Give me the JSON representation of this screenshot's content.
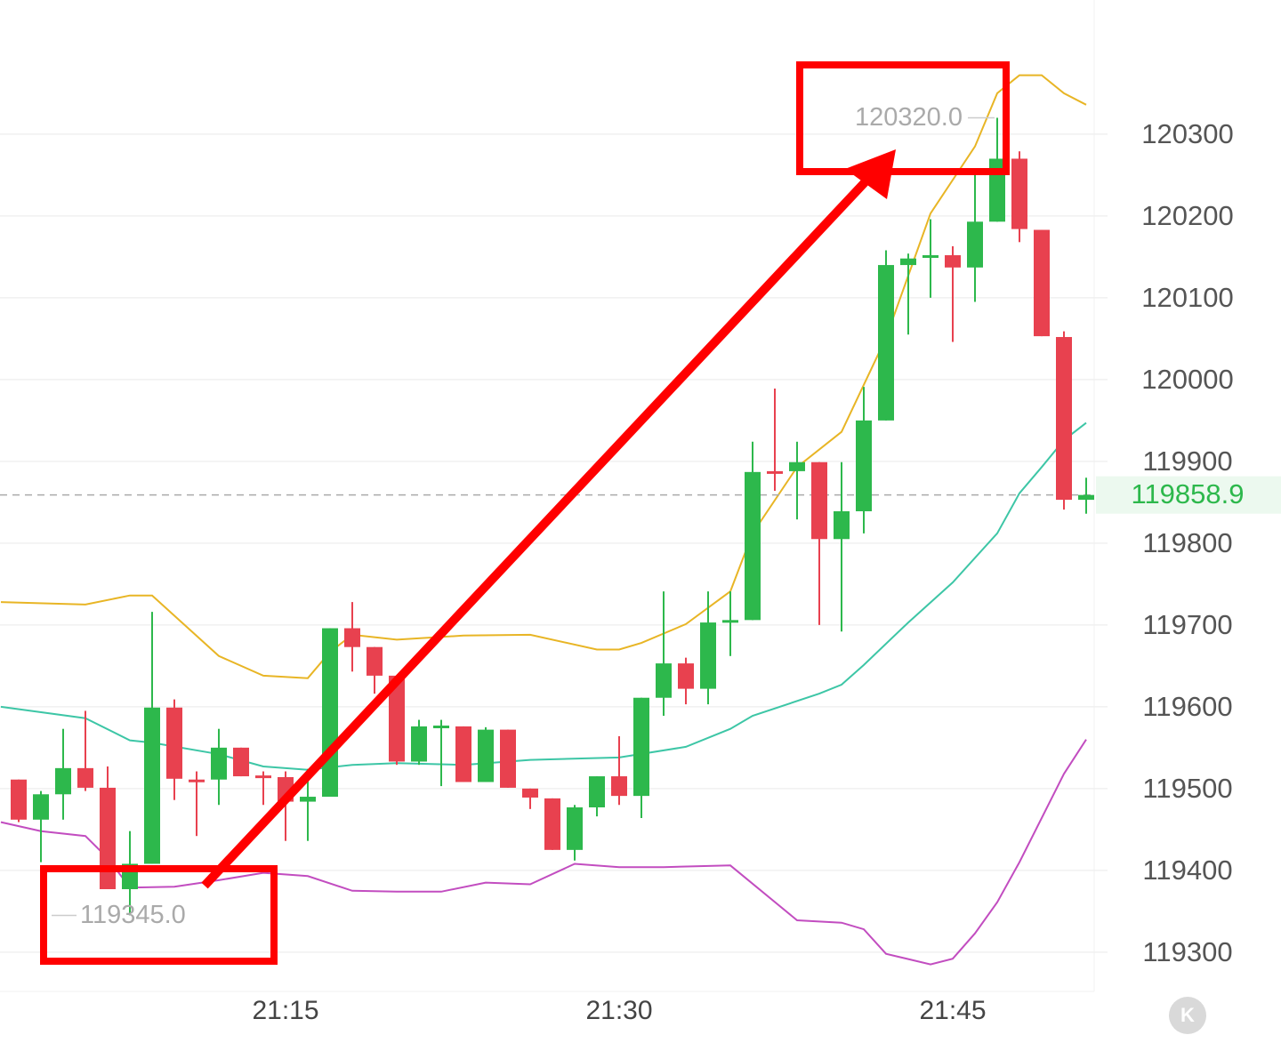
{
  "chart_data": {
    "type": "candlestick",
    "categories": [
      null,
      null,
      null,
      null,
      null,
      null,
      null,
      null,
      null,
      null,
      null,
      null,
      "21:15",
      null,
      null,
      null,
      null,
      null,
      null,
      null,
      null,
      null,
      null,
      null,
      null,
      null,
      null,
      "21:30",
      null,
      null,
      null,
      null,
      null,
      null,
      null,
      null,
      null,
      null,
      null,
      null,
      null,
      null,
      "21:45",
      null,
      null,
      null,
      null,
      null,
      null
    ],
    "open": [
      119511,
      119462,
      119493,
      119525,
      119501,
      119377,
      119408,
      119599,
      119511,
      119511,
      119550,
      119516,
      119514,
      119484,
      119490,
      119696,
      119673,
      119638,
      119533,
      119575,
      119576,
      119508,
      119572,
      119500,
      119488,
      119425,
      119477,
      119515,
      119491,
      119611,
      119653,
      119622,
      119703,
      119706,
      119888,
      119888,
      119899,
      119805,
      119839,
      119950,
      120140,
      120149,
      120152,
      120137,
      120193,
      120270,
      120183,
      120052,
      119853
    ],
    "high": [
      119511,
      119497,
      119573,
      119595,
      119527,
      119448,
      119716,
      119609,
      119521,
      119573,
      119550,
      119521,
      119521,
      119524,
      119696,
      119728,
      119673,
      119638,
      119584,
      119584,
      119576,
      119575,
      119572,
      119500,
      119488,
      119480,
      119515,
      119564,
      119611,
      119741,
      119660,
      119741,
      119741,
      119924,
      119989,
      119924,
      119899,
      119899,
      119991,
      120158,
      120154,
      120196,
      120163,
      120252,
      120320,
      120279,
      120183,
      120059,
      119880
    ],
    "low": [
      119459,
      119410,
      119462,
      119497,
      119377,
      119345,
      119408,
      119486,
      119442,
      119480,
      119515,
      119480,
      119436,
      119436,
      119490,
      119643,
      119616,
      119529,
      119529,
      119503,
      119508,
      119508,
      119501,
      119475,
      119425,
      119412,
      119466,
      119480,
      119464,
      119589,
      119603,
      119603,
      119662,
      119706,
      119864,
      119829,
      119700,
      119692,
      119812,
      119950,
      120055,
      120100,
      120046,
      120095,
      120193,
      120168,
      120053,
      119841,
      119836
    ],
    "close": [
      119462,
      119493,
      119525,
      119501,
      119377,
      119408,
      119599,
      119512,
      119509,
      119550,
      119515,
      119514,
      119484,
      119490,
      119696,
      119673,
      119638,
      119533,
      119576,
      119577,
      119508,
      119572,
      119501,
      119489,
      119425,
      119477,
      119515,
      119491,
      119611,
      119653,
      119622,
      119703,
      119706,
      119887,
      119886,
      119899,
      119805,
      119839,
      119950,
      120140,
      120148,
      120152,
      120137,
      120193,
      120270,
      120184,
      120053,
      119853,
      119858.9
    ],
    "up_color": "#2db84c",
    "down_color": "#e8414f",
    "bands": [
      {
        "color": "#e8b525",
        "x": [
          -0.8,
          3,
          5,
          6,
          9,
          11,
          13,
          14,
          15,
          17,
          20,
          23,
          26,
          27,
          28,
          30,
          32,
          33,
          35,
          37,
          39,
          41,
          43,
          44,
          45,
          46,
          47,
          48
        ],
        "values": [
          119728,
          119725,
          119736,
          119736,
          119662,
          119638,
          119635,
          119667,
          119688,
          119682,
          119687,
          119688,
          119670,
          119670,
          119678,
          119701,
          119741,
          119812,
          119893,
          119936,
          120051,
          120203,
          120285,
          120350,
          120372,
          120372,
          120350,
          120336
        ]
      },
      {
        "color": "#3dc6a6",
        "x": [
          -0.8,
          3,
          5,
          6,
          9,
          11,
          13,
          15,
          17,
          20,
          23,
          27,
          30,
          32,
          33,
          36,
          37,
          38,
          40,
          42,
          44,
          45,
          46,
          47,
          48
        ],
        "values": [
          119600,
          119586,
          119559,
          119556,
          119542,
          119527,
          119523,
          119529,
          119531,
          119529,
          119535,
          119538,
          119551,
          119573,
          119589,
          119616,
          119627,
          119651,
          119703,
          119752,
          119812,
          119861,
          119893,
          119926,
          119947
        ]
      },
      {
        "color": "#c24dc0",
        "x": [
          -0.8,
          1,
          3,
          4,
          5,
          7,
          9,
          11,
          13,
          15,
          17,
          19,
          21,
          23,
          25,
          27,
          29,
          32,
          35,
          37,
          38,
          39,
          41,
          42,
          43,
          44,
          45,
          47,
          48
        ],
        "values": [
          119459,
          119448,
          119442,
          119415,
          119379,
          119380,
          119388,
          119397,
          119393,
          119375,
          119374,
          119374,
          119385,
          119383,
          119408,
          119404,
          119404,
          119406,
          119339,
          119336,
          119328,
          119298,
          119285,
          119292,
          119323,
          119361,
          119410,
          119518,
          119560
        ]
      }
    ],
    "current_price": 119858.9,
    "annotations": [
      {
        "text": "120320.0",
        "value": 120320
      },
      {
        "text": "119345.0",
        "value": 119345
      }
    ],
    "ylim": [
      119252,
      120464
    ],
    "yticks": [
      119300,
      119400,
      119500,
      119600,
      119700,
      119800,
      119900,
      120000,
      120100,
      120200,
      120300
    ],
    "grid": true,
    "logo": "K"
  }
}
